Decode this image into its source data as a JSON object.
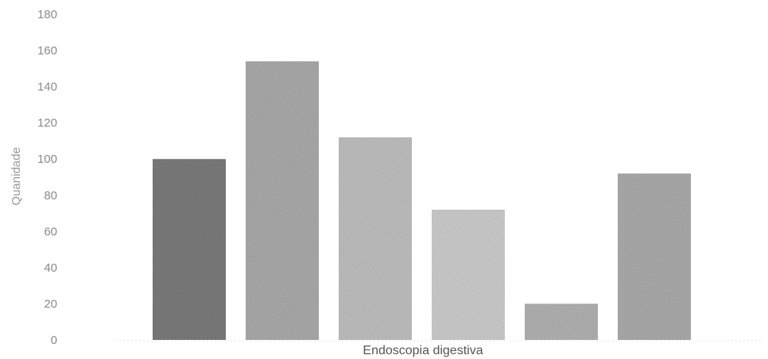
{
  "chart_data": {
    "type": "bar",
    "xlabel": "Endoscopia digestiva",
    "ylabel": "Quanidade",
    "ylim": [
      0,
      180
    ],
    "yticks": [
      0,
      20,
      40,
      60,
      80,
      100,
      120,
      140,
      160,
      180
    ],
    "grid": false,
    "legend": "none",
    "values": [
      100,
      154,
      112,
      72,
      20,
      92
    ],
    "colors": [
      "#7a7a7a",
      "#a9a9a9",
      "#bdbdbd",
      "#cacaca",
      "#b0b0b0",
      "#aaaaaa"
    ]
  }
}
